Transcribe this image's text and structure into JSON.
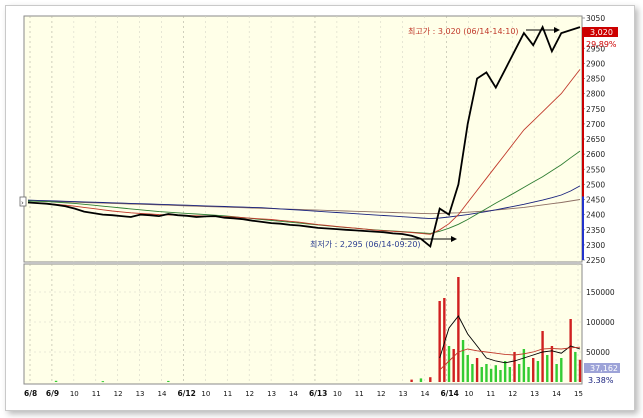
{
  "chart_data": [
    {
      "type": "line",
      "title": "",
      "ylim": [
        2250,
        3050
      ],
      "yticks": [
        2250,
        2300,
        2350,
        2400,
        2450,
        2500,
        2550,
        2600,
        2650,
        2700,
        2750,
        2800,
        2850,
        2900,
        2950,
        3000,
        3050
      ],
      "grid": true,
      "x_tick_labels": [
        "6/8",
        "6/9",
        "10",
        "11",
        "12",
        "13",
        "14",
        "6/12",
        "10",
        "11",
        "12",
        "13",
        "14",
        "6/13",
        "10",
        "11",
        "12",
        "13",
        "14",
        "6/14",
        "10",
        "11",
        "12",
        "13",
        "14",
        "15"
      ],
      "current_price_label": "3,020",
      "change_label": "29.89%",
      "annotations": [
        {
          "text": "최고가 : 3,020 (06/14-14:10)",
          "color": "#c0392b"
        },
        {
          "text": "최저가 : 2,295 (06/14-09:20)",
          "color": "#2c3e91"
        }
      ],
      "series": [
        {
          "color": "#000000",
          "values": [
            2440,
            2438,
            2436,
            2432,
            2428,
            2420,
            2410,
            2405,
            2400,
            2398,
            2395,
            2392,
            2400,
            2398,
            2395,
            2402,
            2398,
            2396,
            2392,
            2394,
            2395,
            2390,
            2388,
            2385,
            2380,
            2376,
            2372,
            2370,
            2366,
            2364,
            2360,
            2356,
            2354,
            2352,
            2350,
            2348,
            2346,
            2344,
            2342,
            2338,
            2336,
            2330,
            2320,
            2295,
            2420,
            2400,
            2500,
            2700,
            2850,
            2870,
            2820,
            2880,
            2940,
            3000,
            2960,
            3020,
            2940,
            3000,
            3010,
            3020
          ]
        },
        {
          "color": "#c0392b",
          "values": [
            2440,
            2439,
            2437,
            2434,
            2431,
            2428,
            2424,
            2420,
            2416,
            2412,
            2409,
            2406,
            2404,
            2402,
            2400,
            2399,
            2398,
            2397,
            2396,
            2395,
            2394,
            2393,
            2392,
            2390,
            2388,
            2386,
            2384,
            2381,
            2378,
            2375,
            2371,
            2367,
            2364,
            2361,
            2358,
            2355,
            2352,
            2349,
            2347,
            2345,
            2343,
            2341,
            2338,
            2335,
            2350,
            2370,
            2400,
            2440,
            2480,
            2520,
            2560,
            2600,
            2640,
            2680,
            2710,
            2740,
            2770,
            2800,
            2840,
            2880
          ]
        },
        {
          "color": "#2e7d32",
          "values": [
            2445,
            2444,
            2443,
            2441,
            2439,
            2437,
            2434,
            2431,
            2428,
            2425,
            2422,
            2419,
            2416,
            2413,
            2410,
            2408,
            2406,
            2404,
            2402,
            2400,
            2398,
            2396,
            2393,
            2390,
            2387,
            2384,
            2381,
            2378,
            2375,
            2372,
            2369,
            2366,
            2363,
            2360,
            2357,
            2355,
            2352,
            2350,
            2348,
            2346,
            2344,
            2342,
            2340,
            2338,
            2345,
            2355,
            2368,
            2384,
            2402,
            2420,
            2438,
            2455,
            2472,
            2490,
            2508,
            2525,
            2545,
            2565,
            2588,
            2610
          ]
        },
        {
          "color": "#1a237e",
          "values": [
            2448,
            2447,
            2446,
            2445,
            2444,
            2443,
            2442,
            2441,
            2440,
            2439,
            2438,
            2437,
            2436,
            2435,
            2434,
            2433,
            2432,
            2431,
            2430,
            2429,
            2428,
            2427,
            2426,
            2425,
            2424,
            2423,
            2421,
            2419,
            2417,
            2415,
            2413,
            2411,
            2409,
            2407,
            2405,
            2403,
            2401,
            2399,
            2397,
            2395,
            2393,
            2391,
            2389,
            2387,
            2389,
            2392,
            2396,
            2400,
            2405,
            2410,
            2416,
            2422,
            2428,
            2434,
            2441,
            2448,
            2456,
            2465,
            2478,
            2495
          ]
        },
        {
          "color": "#8d6e63",
          "values": [
            2445,
            2445,
            2444,
            2443,
            2442,
            2441,
            2440,
            2439,
            2438,
            2437,
            2436,
            2435,
            2434,
            2433,
            2432,
            2431,
            2430,
            2429,
            2428,
            2427,
            2426,
            2425,
            2424,
            2423,
            2422,
            2421,
            2420,
            2419,
            2418,
            2417,
            2416,
            2415,
            2414,
            2413,
            2412,
            2411,
            2410,
            2409,
            2408,
            2407,
            2406,
            2405,
            2404,
            2403,
            2404,
            2405,
            2406,
            2408,
            2410,
            2412,
            2415,
            2418,
            2421,
            2424,
            2428,
            2432,
            2436,
            2440,
            2445,
            2450
          ]
        }
      ]
    },
    {
      "type": "bar",
      "title": "",
      "ylim": [
        0,
        190000
      ],
      "yticks": [
        50000,
        100000,
        150000
      ],
      "grid": true,
      "current_value_label": "37,162",
      "percent_label": "3.38%",
      "bars": [
        {
          "i": 3,
          "v": 2000,
          "c": "#33cc33"
        },
        {
          "i": 8,
          "v": 1500,
          "c": "#33cc33"
        },
        {
          "i": 15,
          "v": 1800,
          "c": "#33cc33"
        },
        {
          "i": 41,
          "v": 4000,
          "c": "#d02020"
        },
        {
          "i": 42,
          "v": 6000,
          "c": "#33cc33"
        },
        {
          "i": 43,
          "v": 8000,
          "c": "#d02020"
        },
        {
          "i": 44,
          "v": 135000,
          "c": "#d02020"
        },
        {
          "i": 44.5,
          "v": 140000,
          "c": "#d02020"
        },
        {
          "i": 45,
          "v": 60000,
          "c": "#33cc33"
        },
        {
          "i": 45.5,
          "v": 55000,
          "c": "#d02020"
        },
        {
          "i": 46,
          "v": 175000,
          "c": "#d02020"
        },
        {
          "i": 46.5,
          "v": 70000,
          "c": "#33cc33"
        },
        {
          "i": 47,
          "v": 45000,
          "c": "#33cc33"
        },
        {
          "i": 47.5,
          "v": 30000,
          "c": "#33cc33"
        },
        {
          "i": 48,
          "v": 40000,
          "c": "#d02020"
        },
        {
          "i": 48.5,
          "v": 25000,
          "c": "#33cc33"
        },
        {
          "i": 49,
          "v": 30000,
          "c": "#33cc33"
        },
        {
          "i": 49.5,
          "v": 22000,
          "c": "#33cc33"
        },
        {
          "i": 50,
          "v": 28000,
          "c": "#33cc33"
        },
        {
          "i": 50.5,
          "v": 20000,
          "c": "#33cc33"
        },
        {
          "i": 51,
          "v": 35000,
          "c": "#33cc33"
        },
        {
          "i": 51.5,
          "v": 25000,
          "c": "#33cc33"
        },
        {
          "i": 52,
          "v": 50000,
          "c": "#d02020"
        },
        {
          "i": 52.5,
          "v": 30000,
          "c": "#33cc33"
        },
        {
          "i": 53,
          "v": 55000,
          "c": "#33cc33"
        },
        {
          "i": 53.5,
          "v": 25000,
          "c": "#33cc33"
        },
        {
          "i": 54,
          "v": 40000,
          "c": "#d02020"
        },
        {
          "i": 54.5,
          "v": 35000,
          "c": "#33cc33"
        },
        {
          "i": 55,
          "v": 85000,
          "c": "#d02020"
        },
        {
          "i": 55.5,
          "v": 45000,
          "c": "#33cc33"
        },
        {
          "i": 56,
          "v": 60000,
          "c": "#d02020"
        },
        {
          "i": 56.5,
          "v": 30000,
          "c": "#33cc33"
        },
        {
          "i": 57,
          "v": 40000,
          "c": "#33cc33"
        },
        {
          "i": 58,
          "v": 105000,
          "c": "#d02020"
        },
        {
          "i": 58.5,
          "v": 50000,
          "c": "#33cc33"
        },
        {
          "i": 59,
          "v": 37000,
          "c": "#d02020"
        }
      ],
      "series": [
        {
          "color": "#000000",
          "values": [
            [
              44,
              40000
            ],
            [
              45,
              90000
            ],
            [
              46,
              110000
            ],
            [
              47,
              80000
            ],
            [
              48,
              60000
            ],
            [
              49,
              40000
            ],
            [
              50,
              35000
            ],
            [
              51,
              32000
            ],
            [
              52,
              35000
            ],
            [
              53,
              40000
            ],
            [
              54,
              45000
            ],
            [
              55,
              50000
            ],
            [
              56,
              52000
            ],
            [
              57,
              48000
            ],
            [
              58,
              60000
            ],
            [
              59,
              55000
            ]
          ]
        },
        {
          "color": "#c0392b",
          "values": [
            [
              44,
              20000
            ],
            [
              45,
              35000
            ],
            [
              46,
              50000
            ],
            [
              47,
              55000
            ],
            [
              48,
              52000
            ],
            [
              49,
              50000
            ],
            [
              50,
              48000
            ],
            [
              51,
              46000
            ],
            [
              52,
              45000
            ],
            [
              53,
              47000
            ],
            [
              54,
              50000
            ],
            [
              55,
              55000
            ],
            [
              56,
              56000
            ],
            [
              57,
              55000
            ],
            [
              58,
              57000
            ],
            [
              59,
              58000
            ]
          ]
        }
      ]
    }
  ]
}
